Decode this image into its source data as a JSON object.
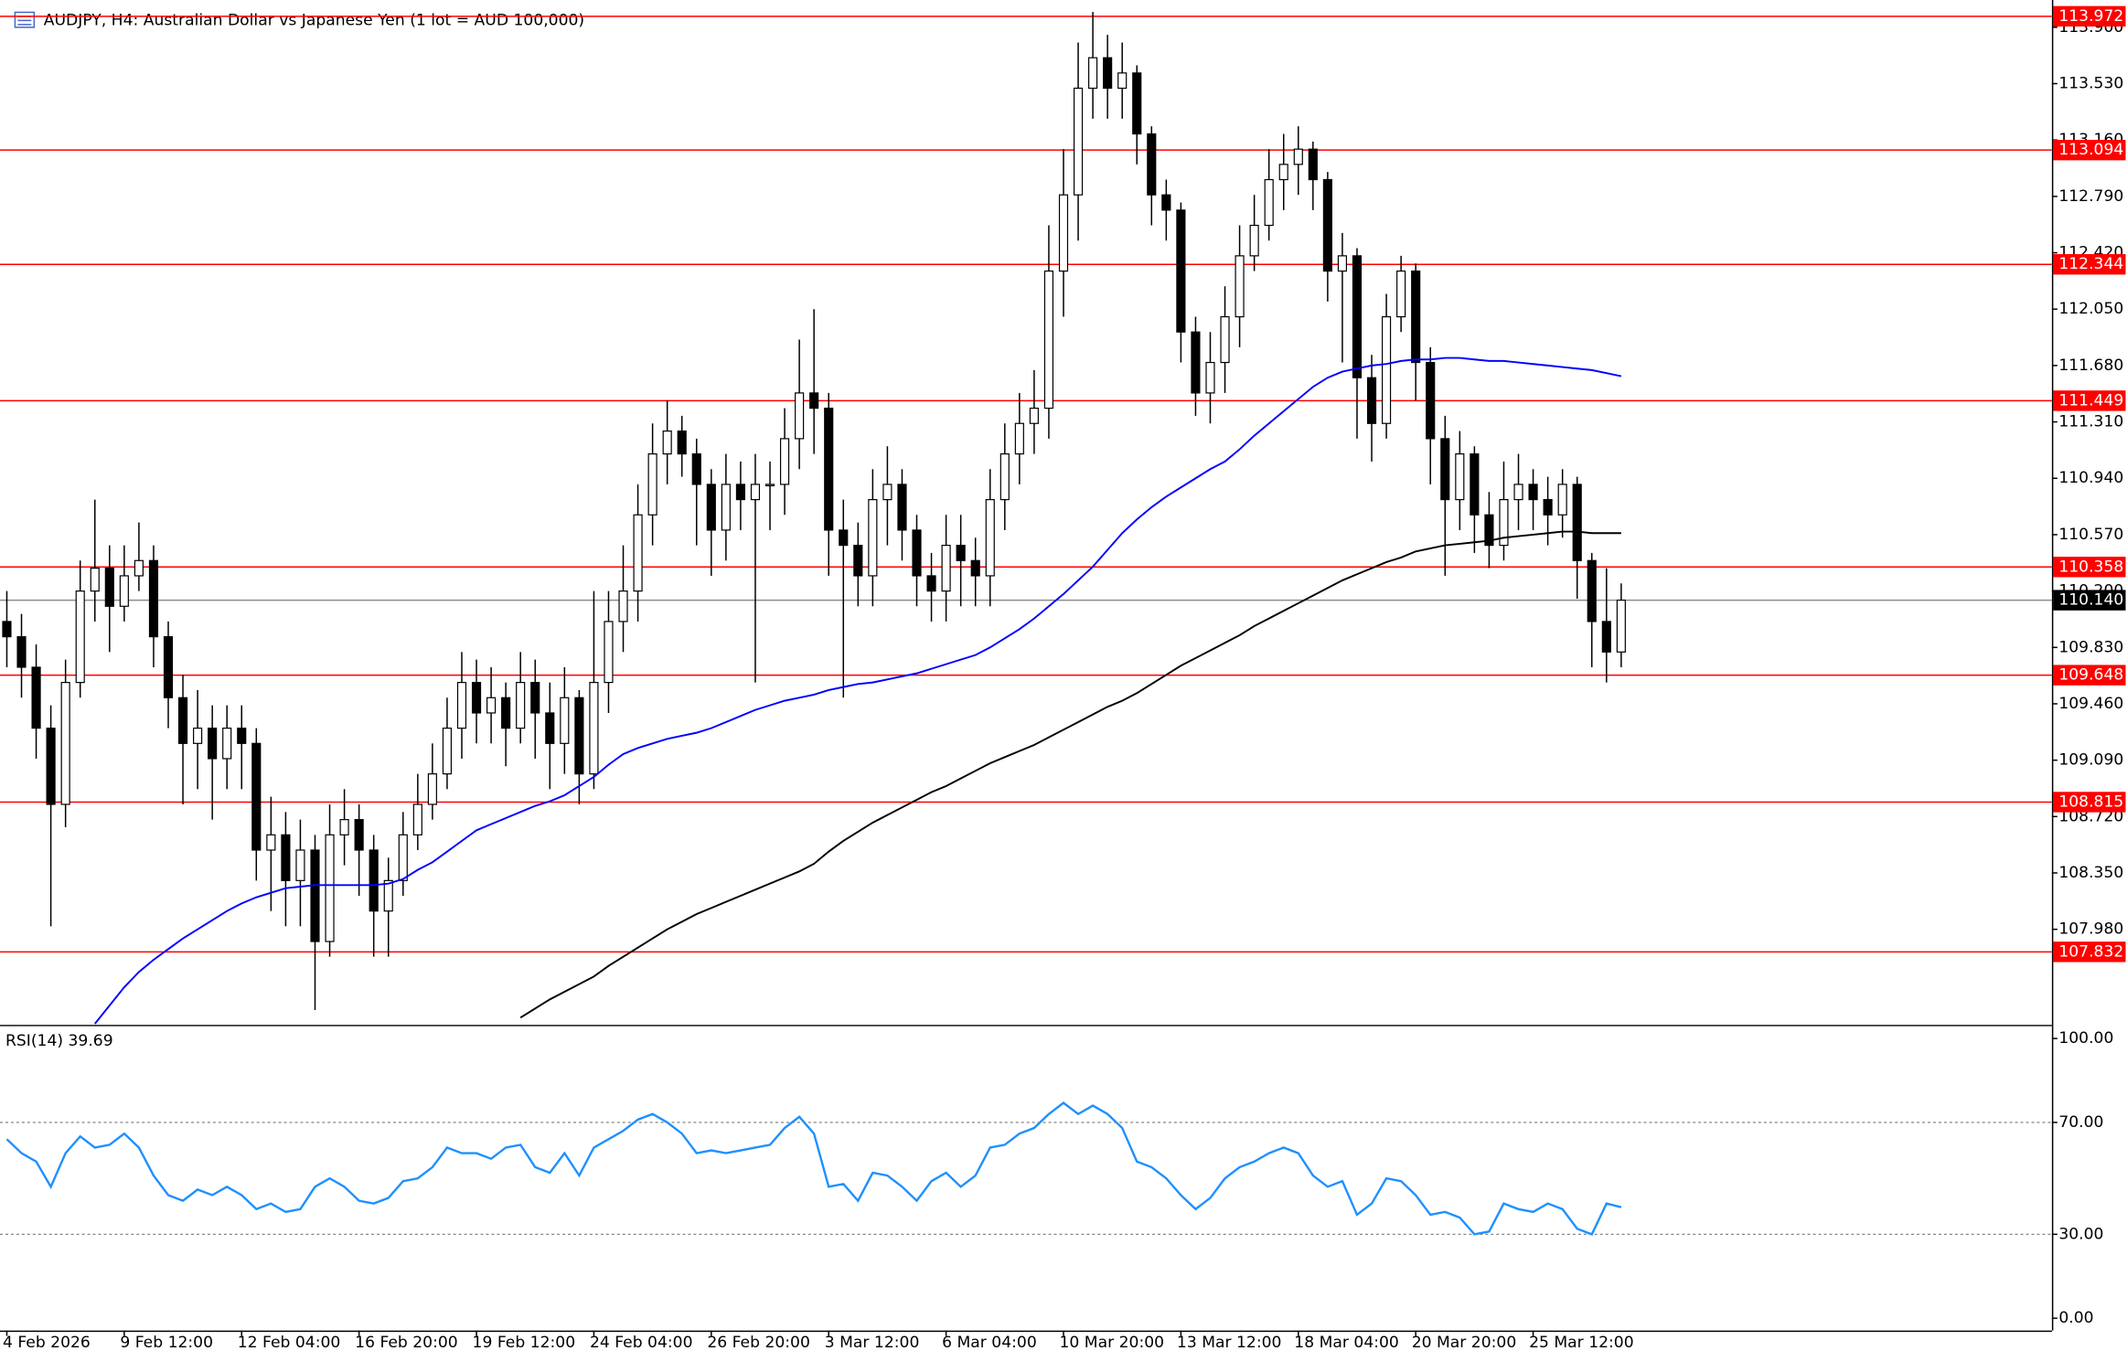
{
  "chart_data": [
    {
      "type": "candlestick",
      "title": "AUDJPY, H4:  Australian Dollar vs Japanese Yen (1 lot = AUD 100,000)",
      "categories": [
        "4 Feb 2026",
        null,
        null,
        null,
        null,
        null,
        null,
        null,
        "9 Feb 12:00",
        null,
        null,
        null,
        null,
        null,
        null,
        null,
        "12 Feb 04:00",
        null,
        null,
        null,
        null,
        null,
        null,
        null,
        "16 Feb 20:00",
        null,
        null,
        null,
        null,
        null,
        null,
        null,
        "19 Feb 12:00",
        null,
        null,
        null,
        null,
        null,
        null,
        null,
        "24 Feb 04:00",
        null,
        null,
        null,
        null,
        null,
        null,
        null,
        "26 Feb 20:00",
        null,
        null,
        null,
        null,
        null,
        null,
        null,
        "3 Mar 12:00",
        null,
        null,
        null,
        null,
        null,
        null,
        null,
        "6 Mar 04:00",
        null,
        null,
        null,
        null,
        null,
        null,
        null,
        "10 Mar 20:00",
        null,
        null,
        null,
        null,
        null,
        null,
        null,
        "13 Mar 12:00",
        null,
        null,
        null,
        null,
        null,
        null,
        null,
        "18 Mar 04:00",
        null,
        null,
        null,
        null,
        null,
        null,
        null,
        "20 Mar 20:00",
        null,
        null,
        null,
        null,
        null,
        null,
        null,
        "25 Mar 12:00",
        null,
        null,
        null,
        null,
        null,
        null
      ],
      "open": [
        110.0,
        109.9,
        109.7,
        109.3,
        108.8,
        109.6,
        110.2,
        110.35,
        110.1,
        110.3,
        110.4,
        109.9,
        109.5,
        109.2,
        109.3,
        109.1,
        109.3,
        109.2,
        108.5,
        108.6,
        108.3,
        108.5,
        107.9,
        108.6,
        108.7,
        108.5,
        108.1,
        108.3,
        108.6,
        108.8,
        109.0,
        109.3,
        109.6,
        109.4,
        109.5,
        109.3,
        109.6,
        109.4,
        109.2,
        109.5,
        109.0,
        109.6,
        110.0,
        110.2,
        110.7,
        111.1,
        111.25,
        111.1,
        110.9,
        110.6,
        110.9,
        110.8,
        110.9,
        110.9,
        111.2,
        111.5,
        111.4,
        110.6,
        110.5,
        110.3,
        110.8,
        110.9,
        110.6,
        110.3,
        110.2,
        110.5,
        110.4,
        110.3,
        110.8,
        111.1,
        111.3,
        111.4,
        112.3,
        112.8,
        113.5,
        113.7,
        113.5,
        113.6,
        113.2,
        112.8,
        112.7,
        111.9,
        111.5,
        111.7,
        112.0,
        112.4,
        112.6,
        112.9,
        113.0,
        113.1,
        112.9,
        112.3,
        112.4,
        111.6,
        111.3,
        112.0,
        112.3,
        111.7,
        111.2,
        110.8,
        111.1,
        110.7,
        110.5,
        110.8,
        110.9,
        110.8,
        110.7,
        110.9,
        110.4,
        110.0,
        109.8
      ],
      "high": [
        110.2,
        110.05,
        109.85,
        109.45,
        109.75,
        110.4,
        110.8,
        110.5,
        110.5,
        110.65,
        110.5,
        110.0,
        109.65,
        109.55,
        109.45,
        109.45,
        109.45,
        109.3,
        108.85,
        108.75,
        108.7,
        108.6,
        108.8,
        108.9,
        108.8,
        108.6,
        108.45,
        108.75,
        109.0,
        109.2,
        109.5,
        109.8,
        109.75,
        109.7,
        109.6,
        109.8,
        109.75,
        109.6,
        109.7,
        109.55,
        110.2,
        110.2,
        110.5,
        110.9,
        111.3,
        111.45,
        111.35,
        111.2,
        111.0,
        111.1,
        111.05,
        111.1,
        111.05,
        111.4,
        111.85,
        112.05,
        111.5,
        110.8,
        110.65,
        111.0,
        111.15,
        111.0,
        110.7,
        110.45,
        110.7,
        110.7,
        110.55,
        111.0,
        111.3,
        111.5,
        111.65,
        112.6,
        113.1,
        113.8,
        114.0,
        113.85,
        113.8,
        113.65,
        113.25,
        112.9,
        112.75,
        112.0,
        111.9,
        112.2,
        112.6,
        112.8,
        113.1,
        113.2,
        113.25,
        113.15,
        112.95,
        112.55,
        112.45,
        111.75,
        112.15,
        112.4,
        112.35,
        111.8,
        111.35,
        111.25,
        111.15,
        110.85,
        111.05,
        111.1,
        111.0,
        110.95,
        111.0,
        110.95,
        110.45,
        110.35,
        110.25
      ],
      "low": [
        109.7,
        109.5,
        109.1,
        108.0,
        108.65,
        109.5,
        110.0,
        109.8,
        110.0,
        110.2,
        109.7,
        109.3,
        108.8,
        108.9,
        108.7,
        108.9,
        108.9,
        108.3,
        108.1,
        108.0,
        108.0,
        107.45,
        107.8,
        108.4,
        108.2,
        107.8,
        107.8,
        108.2,
        108.5,
        108.7,
        108.9,
        109.1,
        109.2,
        109.2,
        109.05,
        109.2,
        109.1,
        108.9,
        109.0,
        108.8,
        108.9,
        109.4,
        109.8,
        110.0,
        110.5,
        110.9,
        110.95,
        110.5,
        110.3,
        110.4,
        110.6,
        109.6,
        110.6,
        110.7,
        111.0,
        111.1,
        110.3,
        109.5,
        110.1,
        110.1,
        110.5,
        110.4,
        110.1,
        110.0,
        110.0,
        110.1,
        110.1,
        110.1,
        110.6,
        110.9,
        111.1,
        111.2,
        112.0,
        112.5,
        113.3,
        113.3,
        113.3,
        113.0,
        112.6,
        112.5,
        111.7,
        111.35,
        111.3,
        111.5,
        111.8,
        112.3,
        112.5,
        112.7,
        112.8,
        112.7,
        112.1,
        111.7,
        111.2,
        111.05,
        111.2,
        111.9,
        111.45,
        110.9,
        110.3,
        110.6,
        110.45,
        110.35,
        110.4,
        110.6,
        110.6,
        110.5,
        110.55,
        110.15,
        109.7,
        109.6,
        109.7
      ],
      "close": [
        109.9,
        109.7,
        109.3,
        108.8,
        109.6,
        110.2,
        110.35,
        110.1,
        110.3,
        110.4,
        109.9,
        109.5,
        109.2,
        109.3,
        109.1,
        109.3,
        109.2,
        108.5,
        108.6,
        108.3,
        108.5,
        107.9,
        108.6,
        108.7,
        108.5,
        108.1,
        108.3,
        108.6,
        108.8,
        109.0,
        109.3,
        109.6,
        109.4,
        109.5,
        109.3,
        109.6,
        109.4,
        109.2,
        109.5,
        109.0,
        109.6,
        110.0,
        110.2,
        110.7,
        111.1,
        111.25,
        111.1,
        110.9,
        110.6,
        110.9,
        110.8,
        110.9,
        110.9,
        111.2,
        111.5,
        111.4,
        110.6,
        110.5,
        110.3,
        110.8,
        110.9,
        110.6,
        110.3,
        110.2,
        110.5,
        110.4,
        110.3,
        110.8,
        111.1,
        111.3,
        111.4,
        112.3,
        112.8,
        113.5,
        113.7,
        113.5,
        113.6,
        113.2,
        112.8,
        112.7,
        111.9,
        111.5,
        111.7,
        112.0,
        112.4,
        112.6,
        112.9,
        113.0,
        113.1,
        112.9,
        112.3,
        112.4,
        111.6,
        111.3,
        112.0,
        112.3,
        111.7,
        111.2,
        110.8,
        111.1,
        110.7,
        110.5,
        110.8,
        110.9,
        110.8,
        110.7,
        110.9,
        110.4,
        110.0,
        109.8,
        110.14
      ],
      "up_color": "#ffffff",
      "down_color": "#000000",
      "series": [
        {
          "color": "#0000ff",
          "values": [
            null,
            null,
            null,
            null,
            null,
            null,
            107.36,
            107.48,
            107.6,
            107.7,
            107.78,
            107.85,
            107.92,
            107.98,
            108.04,
            108.1,
            108.15,
            108.19,
            108.22,
            108.25,
            108.26,
            108.27,
            108.27,
            108.27,
            108.27,
            108.27,
            108.28,
            108.31,
            108.37,
            108.42,
            108.49,
            108.56,
            108.63,
            108.67,
            108.71,
            108.75,
            108.79,
            108.82,
            108.86,
            108.92,
            108.98,
            109.06,
            109.13,
            109.17,
            109.2,
            109.23,
            109.25,
            109.27,
            109.3,
            109.34,
            109.38,
            109.42,
            109.45,
            109.48,
            109.5,
            109.52,
            109.55,
            109.57,
            109.59,
            109.6,
            109.62,
            109.64,
            109.66,
            109.69,
            109.72,
            109.75,
            109.78,
            109.83,
            109.89,
            109.95,
            110.02,
            110.1,
            110.18,
            110.27,
            110.36,
            110.47,
            110.58,
            110.67,
            110.75,
            110.82,
            110.88,
            110.94,
            111.0,
            111.05,
            111.13,
            111.22,
            111.3,
            111.38,
            111.46,
            111.54,
            111.6,
            111.64,
            111.66,
            111.68,
            111.69,
            111.71,
            111.72,
            111.72,
            111.73,
            111.73,
            111.72,
            111.71,
            111.71,
            111.7,
            111.69,
            111.68,
            111.67,
            111.66,
            111.65,
            111.63,
            111.61
          ]
        },
        {
          "color": "#000000",
          "values": [
            null,
            null,
            null,
            null,
            null,
            null,
            null,
            null,
            null,
            null,
            null,
            null,
            null,
            null,
            null,
            null,
            null,
            null,
            null,
            null,
            null,
            null,
            null,
            null,
            null,
            null,
            null,
            null,
            null,
            null,
            null,
            null,
            null,
            null,
            null,
            107.4,
            107.46,
            107.52,
            107.57,
            107.62,
            107.67,
            107.74,
            107.8,
            107.86,
            107.92,
            107.98,
            108.03,
            108.08,
            108.12,
            108.16,
            108.2,
            108.24,
            108.28,
            108.32,
            108.36,
            108.41,
            108.49,
            108.56,
            108.62,
            108.68,
            108.73,
            108.78,
            108.83,
            108.88,
            108.92,
            108.97,
            109.02,
            109.07,
            109.11,
            109.15,
            109.19,
            109.24,
            109.29,
            109.34,
            109.39,
            109.44,
            109.48,
            109.53,
            109.59,
            109.65,
            109.71,
            109.76,
            109.81,
            109.86,
            109.91,
            109.97,
            110.02,
            110.07,
            110.12,
            110.17,
            110.22,
            110.27,
            110.31,
            110.35,
            110.39,
            110.42,
            110.46,
            110.48,
            110.5,
            110.51,
            110.52,
            110.53,
            110.55,
            110.56,
            110.57,
            110.58,
            110.59,
            110.59,
            110.58,
            110.58,
            110.58
          ]
        }
      ],
      "ylim": [
        107.353,
        114.061
      ],
      "yticks": [
        {
          "value": 113.9,
          "label": "113.900"
        },
        {
          "value": 113.53,
          "label": "113.530"
        },
        {
          "value": 113.16,
          "label": "113.160"
        },
        {
          "value": 112.79,
          "label": "112.790"
        },
        {
          "value": 112.42,
          "label": "112.420"
        },
        {
          "value": 112.05,
          "label": "112.050"
        },
        {
          "value": 111.68,
          "label": "111.680"
        },
        {
          "value": 111.31,
          "label": "111.310"
        },
        {
          "value": 110.94,
          "label": "110.940"
        },
        {
          "value": 110.57,
          "label": "110.570"
        },
        {
          "value": 110.2,
          "label": "110.200"
        },
        {
          "value": 109.83,
          "label": "109.830"
        },
        {
          "value": 109.46,
          "label": "109.460"
        },
        {
          "value": 109.09,
          "label": "109.090"
        },
        {
          "value": 108.72,
          "label": "108.720"
        },
        {
          "value": 108.35,
          "label": "108.350"
        },
        {
          "value": 107.98,
          "label": "107.980"
        }
      ],
      "levels": [
        {
          "value": 113.972,
          "label": "113.972"
        },
        {
          "value": 113.094,
          "label": "113.094"
        },
        {
          "value": 112.344,
          "label": "112.344"
        },
        {
          "value": 111.449,
          "label": "111.449"
        },
        {
          "value": 110.358,
          "label": "110.358"
        },
        {
          "value": 109.648,
          "label": "109.648"
        },
        {
          "value": 108.815,
          "label": "108.815"
        },
        {
          "value": 107.832,
          "label": "107.832"
        }
      ],
      "level_color": "#ff0000",
      "current": {
        "value": 110.14,
        "label": "110.140"
      },
      "grid": false
    },
    {
      "type": "line",
      "title": "RSI(14) 39.69",
      "series": [
        {
          "color": "#1e90ff",
          "values": [
            64,
            59,
            56,
            47,
            59,
            65,
            61,
            62,
            66,
            61,
            51,
            44,
            42,
            46,
            44,
            47,
            44,
            39,
            41,
            38,
            39,
            47,
            50,
            47,
            42,
            41,
            43,
            49,
            50,
            54,
            61,
            59,
            59,
            57,
            61,
            62,
            54,
            52,
            59,
            51,
            61,
            64,
            67,
            71,
            73,
            70,
            66,
            59,
            60,
            59,
            60,
            61,
            62,
            68,
            72,
            66,
            47,
            48,
            42,
            52,
            51,
            47,
            42,
            49,
            52,
            47,
            51,
            61,
            62,
            66,
            68,
            73,
            77,
            73,
            76,
            73,
            68,
            56,
            54,
            50,
            44,
            39,
            43,
            50,
            54,
            56,
            59,
            61,
            59,
            51,
            47,
            49,
            37,
            41,
            50,
            49,
            44,
            37,
            38,
            36,
            30,
            31,
            41,
            39,
            38,
            41,
            39,
            32,
            30,
            41,
            39.69
          ]
        }
      ],
      "ylim": [
        -4.4,
        103.9
      ],
      "yticks": [
        {
          "value": 100,
          "label": "100.00"
        },
        {
          "value": 70,
          "label": "70.00"
        },
        {
          "value": 30,
          "label": "30.00"
        },
        {
          "value": 0,
          "label": "0.00"
        }
      ],
      "levels": [
        70,
        30
      ],
      "grid": false
    }
  ]
}
